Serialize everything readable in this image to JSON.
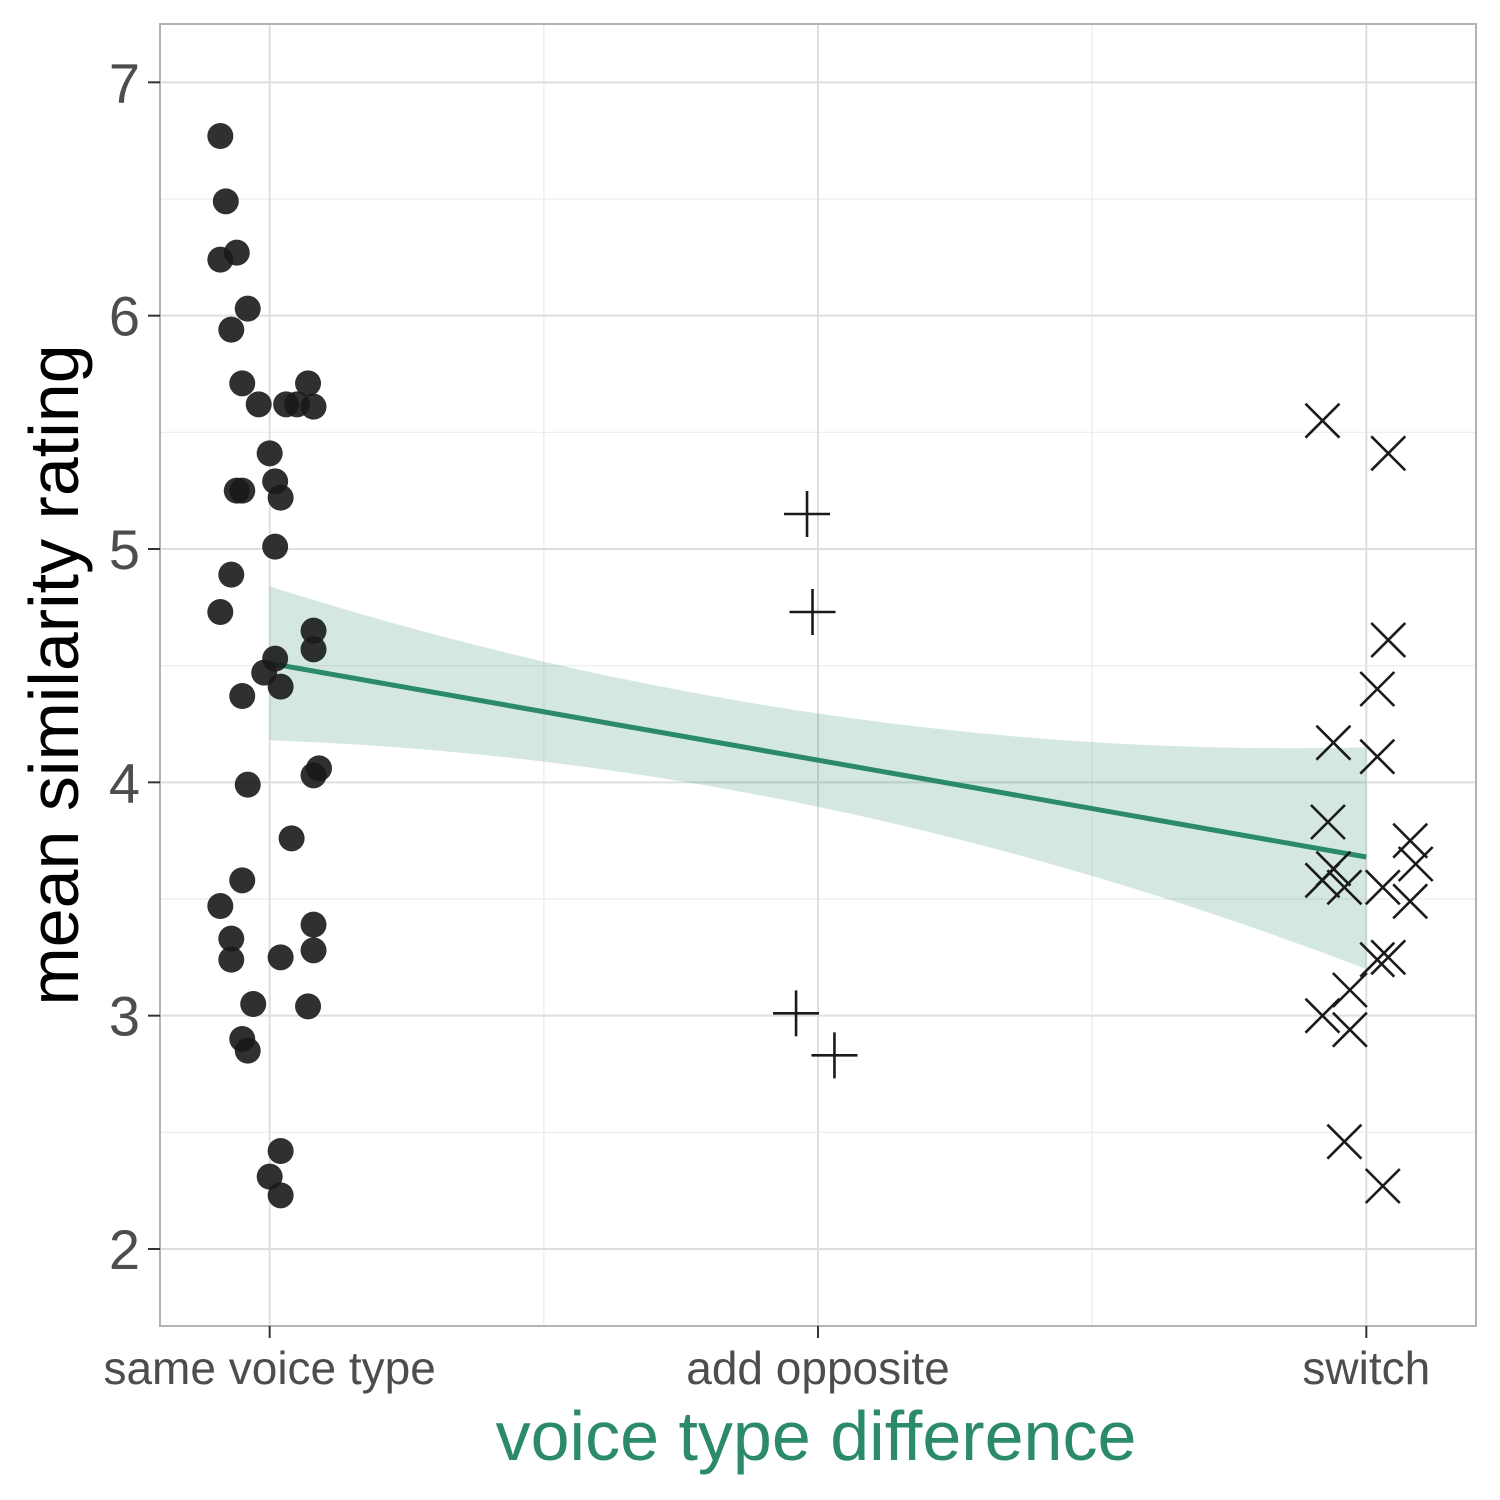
{
  "chart_data": {
    "type": "scatter",
    "title": "",
    "xlabel": "voice type difference",
    "ylabel": "mean similarity rating",
    "categories": [
      "same voice type",
      "add opposite",
      "switch"
    ],
    "xlim": [
      0.8,
      3.2
    ],
    "ylim": [
      1.67,
      7.25
    ],
    "yticks": [
      2,
      3,
      4,
      5,
      6,
      7
    ],
    "grid": true,
    "legend": "none",
    "colors": {
      "points": "#1a1a1a",
      "fit_line": "#2a8a6a",
      "ribbon": "#2a8a6a",
      "xlabel": "#2a8a6a",
      "ylabel": "#000000",
      "tick_label": "#4d4d4d",
      "grid_major": "#dedede",
      "grid_minor": "#ececec",
      "panel_border": "#b3b3b3"
    },
    "fit": {
      "x": [
        1,
        3
      ],
      "y": [
        4.51,
        3.68
      ],
      "ci_lower": [
        4.18,
        3.2
      ],
      "ci_upper": [
        4.84,
        4.15
      ]
    },
    "series": [
      {
        "category": "same voice type",
        "marker": "circle",
        "x": [
          0.91,
          0.92,
          0.94,
          0.91,
          0.93,
          0.96,
          0.95,
          0.98,
          1.03,
          1.05,
          1.07,
          1.08,
          1.0,
          1.01,
          1.02,
          0.94,
          0.95,
          1.01,
          0.93,
          0.91,
          1.08,
          1.08,
          0.99,
          1.01,
          1.02,
          0.95,
          0.96,
          1.09,
          1.08,
          1.04,
          0.95,
          0.91,
          0.93,
          0.93,
          1.08,
          1.08,
          1.02,
          0.97,
          1.07,
          0.95,
          0.96,
          1.02,
          1.0,
          1.02
        ],
        "y": [
          6.77,
          6.49,
          6.27,
          6.24,
          5.94,
          6.03,
          5.71,
          5.62,
          5.62,
          5.62,
          5.71,
          5.61,
          5.41,
          5.29,
          5.22,
          5.25,
          5.25,
          5.01,
          4.89,
          4.73,
          4.65,
          4.57,
          4.47,
          4.53,
          4.41,
          4.37,
          3.99,
          4.06,
          4.03,
          3.76,
          3.58,
          3.47,
          3.33,
          3.24,
          3.39,
          3.28,
          3.25,
          3.05,
          3.04,
          2.9,
          2.85,
          2.42,
          2.31,
          2.23
        ]
      },
      {
        "category": "add opposite",
        "marker": "plus",
        "x": [
          1.98,
          1.99,
          1.96,
          2.03
        ],
        "y": [
          5.15,
          4.73,
          3.01,
          2.83
        ]
      },
      {
        "category": "switch",
        "marker": "cross",
        "x": [
          2.92,
          3.04,
          3.04,
          3.02,
          2.94,
          3.02,
          2.93,
          2.92,
          2.94,
          2.96,
          3.03,
          3.08,
          3.09,
          3.08,
          3.02,
          3.04,
          2.97,
          2.92,
          2.97,
          2.96,
          3.03
        ],
        "y": [
          5.55,
          5.41,
          4.61,
          4.4,
          4.17,
          4.11,
          3.83,
          3.58,
          3.63,
          3.55,
          3.55,
          3.75,
          3.65,
          3.49,
          3.24,
          3.25,
          3.11,
          3.0,
          2.94,
          2.46,
          2.27
        ]
      }
    ]
  }
}
